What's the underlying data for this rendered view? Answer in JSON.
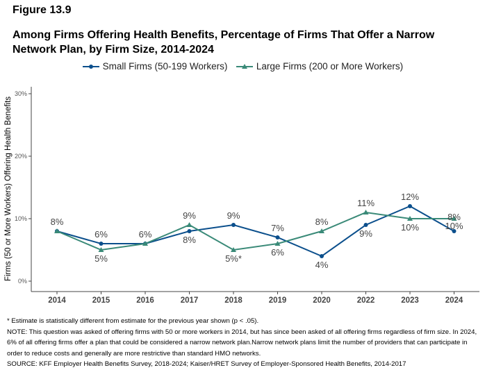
{
  "figure_label": "Figure 13.9",
  "title": "Among Firms Offering Health Benefits, Percentage of Firms That Offer a Narrow Network Plan, by Firm Size, 2014-2024",
  "chart_data": {
    "type": "line",
    "categories": [
      "2014",
      "2015",
      "2016",
      "2017",
      "2018",
      "2019",
      "2020",
      "2022",
      "2023",
      "2024"
    ],
    "ylabel": "Firms (50 or More Workers) Offering Health Benefits",
    "ylim": [
      0,
      30
    ],
    "yticks": [
      "0%",
      "10%",
      "20%",
      "30%"
    ],
    "legend_position": "top",
    "grid": false,
    "series": [
      {
        "name": "Small Firms (50-199 Workers)",
        "color": "#0b4f8c",
        "marker": "circle",
        "values": [
          8,
          6,
          6,
          8,
          9,
          7,
          4,
          9,
          12,
          8
        ],
        "labels": [
          "8%",
          "6%",
          "6%",
          "8%",
          "9%",
          "7%",
          "4%",
          "9%",
          "12%",
          "8%"
        ]
      },
      {
        "name": "Large Firms (200 or More Workers)",
        "color": "#3a8a78",
        "marker": "triangle",
        "values": [
          8,
          5,
          6,
          9,
          5,
          6,
          8,
          11,
          10,
          10
        ],
        "labels": [
          "8%",
          "5%",
          "6%",
          "9%",
          "5%*",
          "6%",
          "8%",
          "11%",
          "10%",
          "10%"
        ]
      }
    ]
  },
  "notes": {
    "asterisk": "* Estimate is statistically different from estimate for the previous year shown (p < .05).",
    "note": "NOTE: This question was asked of offering firms with 50 or more workers in 2014, but has since been asked of all offering firms regardless of firm size. In 2024, 6% of all offering firms offer a plan that could be considered a narrow network plan.Narrow network plans limit the number of providers that can participate in order to reduce costs and generally are more restrictive than standard HMO networks.",
    "source": "SOURCE: KFF Employer Health Benefits Survey, 2018-2024; Kaiser/HRET Survey of Employer-Sponsored Health Benefits, 2014-2017"
  }
}
